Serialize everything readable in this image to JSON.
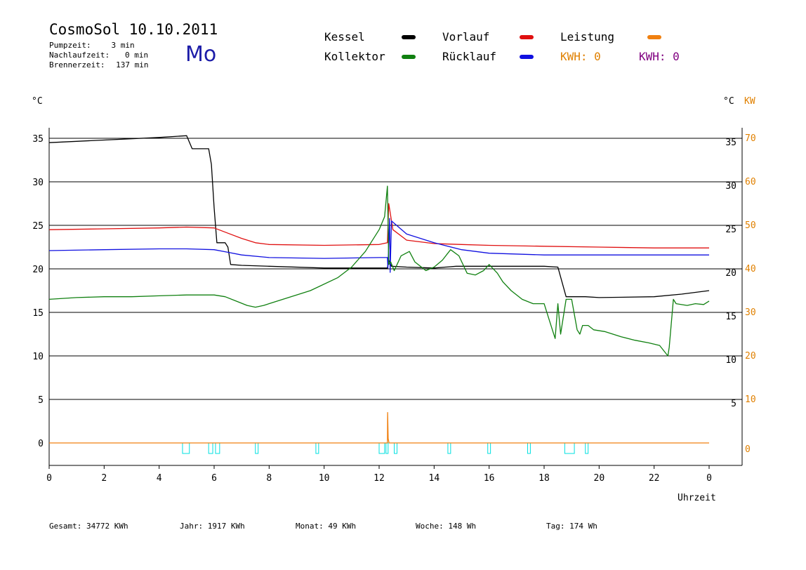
{
  "header": {
    "title": "CosmoSol 10.10.2011",
    "day": "Mo",
    "stats": [
      {
        "label": "Pumpzeit:",
        "value": "3 min"
      },
      {
        "label": "Nachlaufzeit:",
        "value": "0 min"
      },
      {
        "label": "Brennerzeit:",
        "value": "137 min"
      }
    ]
  },
  "legend": {
    "kessel": "Kessel",
    "vorlauf": "Vorlauf",
    "leistung": "Leistung",
    "kollektor": "Kollektor",
    "ruecklauf": "Rücklauf",
    "kwh1": "KWH: 0",
    "kwh2": "KWH: 0"
  },
  "colors": {
    "kessel": "#000000",
    "vorlauf": "#e01010",
    "ruecklauf": "#1010e0",
    "kollektor": "#108010",
    "leistung": "#f08010",
    "pumpe": "#00e0e0",
    "kw_axis": "#e08000",
    "kwh2": "#800080"
  },
  "footer": {
    "gesamt": "Gesamt:  34772 KWh",
    "jahr": "Jahr:  1917 KWh",
    "monat": "Monat:    49 KWh",
    "woche": "Woche:   148 Wh",
    "tag": "Tag:   174 Wh"
  },
  "chart_data": {
    "type": "line",
    "left_axis_label": "°C",
    "right_axis_label": "°C",
    "right_axis2_label": "KW",
    "xlabel": "Uhrzeit",
    "xlim": [
      0,
      24
    ],
    "ylim": [
      -2.5,
      36.5
    ],
    "x_ticks": [
      "0",
      "2",
      "4",
      "6",
      "8",
      "10",
      "12",
      "14",
      "16",
      "18",
      "20",
      "22",
      "0"
    ],
    "y_ticks": [
      0,
      5,
      10,
      15,
      20,
      25,
      30,
      35
    ],
    "kw_ticks": [
      0,
      10,
      20,
      30,
      40,
      50,
      60,
      70
    ],
    "grid": "horizontal",
    "series": [
      {
        "name": "Kessel",
        "color": "#000000",
        "x": [
          0,
          2,
          4,
          5,
          5.2,
          5.8,
          5.9,
          6.0,
          6.1,
          6.4,
          6.5,
          6.6,
          7,
          8,
          10,
          12,
          12.3,
          12.35,
          12.45,
          13,
          14,
          14.8,
          18,
          18.5,
          18.8,
          19.5,
          20,
          22,
          23,
          24
        ],
        "y": [
          34.5,
          34.8,
          35.1,
          35.3,
          33.8,
          33.8,
          32,
          27,
          23,
          23,
          22.5,
          20.5,
          20.4,
          20.3,
          20.1,
          20.1,
          20.1,
          21,
          20.3,
          20.2,
          20.1,
          20.3,
          20.3,
          20.2,
          16.8,
          16.8,
          16.7,
          16.8,
          17.1,
          17.5
        ]
      },
      {
        "name": "Vorlauf",
        "color": "#e01010",
        "x": [
          0,
          2,
          4,
          5,
          6,
          6.5,
          7,
          7.5,
          8,
          10,
          12,
          12.3,
          12.35,
          12.5,
          13,
          14,
          15,
          16,
          18,
          20,
          22,
          24
        ],
        "y": [
          24.5,
          24.6,
          24.7,
          24.8,
          24.7,
          24.1,
          23.5,
          23,
          22.8,
          22.7,
          22.8,
          23,
          27.5,
          24.5,
          23.3,
          22.9,
          22.8,
          22.7,
          22.6,
          22.5,
          22.4,
          22.4
        ]
      },
      {
        "name": "Rücklauf",
        "color": "#1010e0",
        "x": [
          0,
          2,
          4,
          5,
          6,
          6.5,
          7,
          8,
          10,
          12,
          12.3,
          12.32,
          12.38,
          12.4,
          12.45,
          13,
          14,
          15,
          16,
          18,
          20,
          22,
          24
        ],
        "y": [
          22.1,
          22.2,
          22.3,
          22.3,
          22.2,
          21.9,
          21.6,
          21.3,
          21.2,
          21.3,
          21.3,
          20.1,
          25.8,
          19.6,
          25.5,
          24,
          23,
          22.2,
          21.8,
          21.6,
          21.6,
          21.6,
          21.6
        ]
      },
      {
        "name": "Kollektor",
        "color": "#108010",
        "x": [
          0,
          1,
          2,
          3,
          4,
          5,
          6,
          6.4,
          6.8,
          7.2,
          7.5,
          7.8,
          8.5,
          9.5,
          10.5,
          11,
          11.5,
          12,
          12.2,
          12.3,
          12.35,
          12.42,
          12.55,
          12.8,
          13.1,
          13.3,
          13.7,
          14,
          14.3,
          14.6,
          14.9,
          15.2,
          15.5,
          15.8,
          16,
          16.3,
          16.5,
          16.8,
          17.2,
          17.6,
          18,
          18.2,
          18.4,
          18.5,
          18.6,
          18.8,
          19,
          19.2,
          19.3,
          19.4,
          19.6,
          19.8,
          20.2,
          20.8,
          21.3,
          21.8,
          22.2,
          22.5,
          22.55,
          22.7,
          22.8,
          23.2,
          23.5,
          23.8,
          24
        ],
        "y": [
          16.5,
          16.7,
          16.8,
          16.8,
          16.9,
          17,
          17,
          16.8,
          16.3,
          15.8,
          15.6,
          15.8,
          16.5,
          17.5,
          19,
          20.2,
          22,
          24.5,
          26,
          29.5,
          20.5,
          20.8,
          19.8,
          21.5,
          22,
          20.8,
          19.8,
          20.2,
          21,
          22.2,
          21.5,
          19.5,
          19.3,
          19.8,
          20.5,
          19.5,
          18.5,
          17.5,
          16.5,
          16,
          16,
          14,
          12,
          16,
          12.5,
          16.5,
          16.5,
          13,
          12.5,
          13.5,
          13.5,
          13,
          12.8,
          12.2,
          11.8,
          11.5,
          11.2,
          10,
          11,
          16.5,
          16,
          15.8,
          16,
          15.9,
          16.3
        ]
      },
      {
        "name": "Leistung",
        "color": "#f08010",
        "x": [
          0,
          12.3,
          12.31,
          12.33,
          12.36,
          24
        ],
        "y": [
          0,
          0,
          3.5,
          0.5,
          0,
          0
        ]
      }
    ],
    "pump_on_periods": [
      [
        4.85,
        5.1
      ],
      [
        5.8,
        5.95
      ],
      [
        6.05,
        6.2
      ],
      [
        7.5,
        7.6
      ],
      [
        9.7,
        9.8
      ],
      [
        12.0,
        12.2
      ],
      [
        12.25,
        12.3
      ],
      [
        12.55,
        12.65
      ],
      [
        14.5,
        14.6
      ],
      [
        15.95,
        16.05
      ],
      [
        17.4,
        17.5
      ],
      [
        18.75,
        19.1
      ],
      [
        19.5,
        19.6
      ]
    ]
  }
}
